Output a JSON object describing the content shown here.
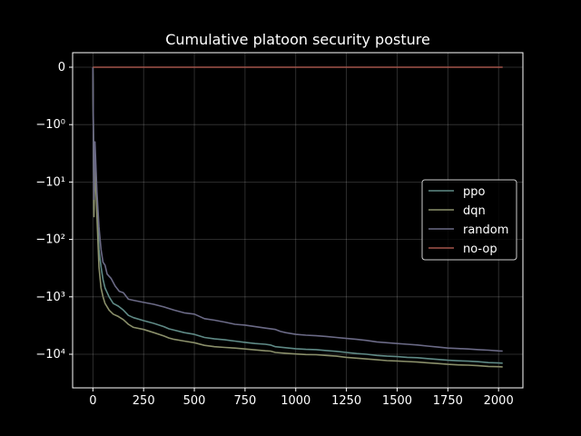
{
  "chart_data": {
    "type": "line",
    "title": "Cumulative platoon security posture",
    "xlabel": "",
    "ylabel": "",
    "y_scale": "symlog",
    "xlim": [
      -100,
      2120
    ],
    "x_ticks": [
      0,
      250,
      500,
      750,
      1000,
      1250,
      1500,
      1750,
      2000
    ],
    "x_tick_labels": [
      "0",
      "250",
      "500",
      "750",
      "1000",
      "1250",
      "1500",
      "1750",
      "2000"
    ],
    "y_ticks": [
      0,
      -1,
      -10,
      -100,
      -1000,
      -10000
    ],
    "y_tick_labels": [
      "0",
      "−10⁰",
      "−10¹",
      "−10²",
      "−10³",
      "−10⁴"
    ],
    "grid": true,
    "legend_position": "right",
    "series": [
      {
        "name": "ppo",
        "color": "#5f8a86",
        "points": [
          [
            0,
            0
          ],
          [
            5,
            -30
          ],
          [
            10,
            -3
          ],
          [
            20,
            -20
          ],
          [
            30,
            -150
          ],
          [
            40,
            -300
          ],
          [
            50,
            -500
          ],
          [
            60,
            -700
          ],
          [
            80,
            -1000
          ],
          [
            100,
            -1300
          ],
          [
            125,
            -1450
          ],
          [
            150,
            -1700
          ],
          [
            175,
            -2100
          ],
          [
            200,
            -2300
          ],
          [
            250,
            -2600
          ],
          [
            300,
            -2900
          ],
          [
            350,
            -3300
          ],
          [
            375,
            -3600
          ],
          [
            400,
            -3800
          ],
          [
            450,
            -4200
          ],
          [
            500,
            -4500
          ],
          [
            550,
            -5100
          ],
          [
            600,
            -5400
          ],
          [
            650,
            -5600
          ],
          [
            700,
            -5900
          ],
          [
            750,
            -6200
          ],
          [
            800,
            -6500
          ],
          [
            850,
            -6700
          ],
          [
            875,
            -6900
          ],
          [
            900,
            -7400
          ],
          [
            950,
            -7700
          ],
          [
            1000,
            -8000
          ],
          [
            1050,
            -8200
          ],
          [
            1100,
            -8300
          ],
          [
            1150,
            -8600
          ],
          [
            1200,
            -8900
          ],
          [
            1250,
            -9300
          ],
          [
            1300,
            -9700
          ],
          [
            1350,
            -10000
          ],
          [
            1400,
            -10500
          ],
          [
            1450,
            -10800
          ],
          [
            1500,
            -11000
          ],
          [
            1550,
            -11300
          ],
          [
            1600,
            -11500
          ],
          [
            1650,
            -11900
          ],
          [
            1700,
            -12300
          ],
          [
            1750,
            -12700
          ],
          [
            1800,
            -13000
          ],
          [
            1850,
            -13200
          ],
          [
            1900,
            -13500
          ],
          [
            1950,
            -14000
          ],
          [
            2000,
            -14200
          ],
          [
            2020,
            -14300
          ]
        ]
      },
      {
        "name": "dqn",
        "color": "#8a8f6a",
        "points": [
          [
            0,
            0
          ],
          [
            5,
            -40
          ],
          [
            10,
            -5
          ],
          [
            20,
            -40
          ],
          [
            30,
            -300
          ],
          [
            40,
            -700
          ],
          [
            50,
            -1000
          ],
          [
            60,
            -1300
          ],
          [
            80,
            -1700
          ],
          [
            100,
            -2000
          ],
          [
            125,
            -2200
          ],
          [
            150,
            -2500
          ],
          [
            175,
            -3000
          ],
          [
            200,
            -3400
          ],
          [
            250,
            -3700
          ],
          [
            300,
            -4200
          ],
          [
            350,
            -4800
          ],
          [
            375,
            -5200
          ],
          [
            400,
            -5500
          ],
          [
            450,
            -5900
          ],
          [
            500,
            -6300
          ],
          [
            550,
            -7000
          ],
          [
            600,
            -7400
          ],
          [
            650,
            -7600
          ],
          [
            700,
            -7800
          ],
          [
            750,
            -8100
          ],
          [
            800,
            -8400
          ],
          [
            850,
            -8700
          ],
          [
            875,
            -8800
          ],
          [
            900,
            -9300
          ],
          [
            950,
            -9600
          ],
          [
            1000,
            -9900
          ],
          [
            1050,
            -10100
          ],
          [
            1100,
            -10200
          ],
          [
            1150,
            -10500
          ],
          [
            1200,
            -10800
          ],
          [
            1250,
            -11300
          ],
          [
            1300,
            -11700
          ],
          [
            1350,
            -12100
          ],
          [
            1400,
            -12500
          ],
          [
            1450,
            -12900
          ],
          [
            1500,
            -13100
          ],
          [
            1550,
            -13400
          ],
          [
            1600,
            -13700
          ],
          [
            1650,
            -14100
          ],
          [
            1700,
            -14500
          ],
          [
            1750,
            -15000
          ],
          [
            1800,
            -15300
          ],
          [
            1850,
            -15500
          ],
          [
            1900,
            -15800
          ],
          [
            1950,
            -16300
          ],
          [
            2000,
            -16500
          ],
          [
            2020,
            -16600
          ]
        ]
      },
      {
        "name": "random",
        "color": "#6b6a86",
        "points": [
          [
            0,
            0
          ],
          [
            5,
            -20
          ],
          [
            10,
            -2
          ],
          [
            20,
            -15
          ],
          [
            30,
            -60
          ],
          [
            40,
            -150
          ],
          [
            50,
            -250
          ],
          [
            60,
            -280
          ],
          [
            70,
            -400
          ],
          [
            90,
            -480
          ],
          [
            110,
            -650
          ],
          [
            130,
            -800
          ],
          [
            150,
            -850
          ],
          [
            175,
            -1100
          ],
          [
            200,
            -1150
          ],
          [
            250,
            -1250
          ],
          [
            300,
            -1350
          ],
          [
            350,
            -1500
          ],
          [
            400,
            -1700
          ],
          [
            450,
            -1900
          ],
          [
            500,
            -2000
          ],
          [
            550,
            -2400
          ],
          [
            600,
            -2550
          ],
          [
            650,
            -2750
          ],
          [
            700,
            -3000
          ],
          [
            750,
            -3100
          ],
          [
            800,
            -3300
          ],
          [
            850,
            -3500
          ],
          [
            900,
            -3700
          ],
          [
            925,
            -4000
          ],
          [
            950,
            -4200
          ],
          [
            1000,
            -4500
          ],
          [
            1050,
            -4650
          ],
          [
            1100,
            -4750
          ],
          [
            1150,
            -4900
          ],
          [
            1200,
            -5100
          ],
          [
            1250,
            -5300
          ],
          [
            1300,
            -5500
          ],
          [
            1350,
            -5750
          ],
          [
            1400,
            -6100
          ],
          [
            1450,
            -6300
          ],
          [
            1500,
            -6500
          ],
          [
            1550,
            -6700
          ],
          [
            1600,
            -6900
          ],
          [
            1650,
            -7200
          ],
          [
            1700,
            -7500
          ],
          [
            1750,
            -7800
          ],
          [
            1800,
            -7950
          ],
          [
            1850,
            -8100
          ],
          [
            1900,
            -8300
          ],
          [
            1950,
            -8500
          ],
          [
            2000,
            -8750
          ],
          [
            2020,
            -8800
          ]
        ]
      },
      {
        "name": "no-op",
        "color": "#a3544a",
        "points": [
          [
            0,
            0
          ],
          [
            2020,
            0
          ]
        ]
      }
    ]
  }
}
